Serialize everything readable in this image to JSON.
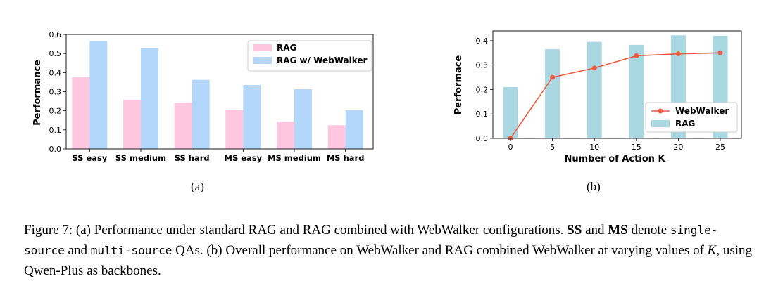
{
  "chart_data": [
    {
      "type": "bar",
      "title": "",
      "xlabel": "",
      "ylabel": "Performance",
      "ylim": [
        0,
        0.6
      ],
      "yticks": [
        "0.0",
        "0.1",
        "0.2",
        "0.3",
        "0.4",
        "0.5",
        "0.6"
      ],
      "categories": [
        "SS easy",
        "SS medium",
        "SS hard",
        "MS easy",
        "MS medium",
        "MS hard"
      ],
      "series": [
        {
          "name": "RAG",
          "color": "#ffc6e0",
          "values": [
            0.375,
            0.258,
            0.242,
            0.203,
            0.143,
            0.124
          ]
        },
        {
          "name": "RAG w/ WebWalker",
          "color": "#b3d6fb",
          "values": [
            0.565,
            0.528,
            0.362,
            0.335,
            0.313,
            0.203
          ]
        }
      ],
      "legend": "top-right",
      "sublabel": "(a)"
    },
    {
      "type": "bar+line",
      "title": "",
      "xlabel": "Number of Action K",
      "ylabel": "Performace",
      "ylim": [
        0,
        0.44
      ],
      "yticks": [
        "0.0",
        "0.1",
        "0.2",
        "0.3",
        "0.4"
      ],
      "x": [
        0,
        5,
        10,
        15,
        20,
        25
      ],
      "series": [
        {
          "name": "WebWalker",
          "kind": "line",
          "color": "#ef5b42",
          "values": [
            0.0,
            0.25,
            0.288,
            0.338,
            0.346,
            0.35
          ]
        },
        {
          "name": "RAG",
          "kind": "bar",
          "color": "#aad8e2",
          "values": [
            0.21,
            0.365,
            0.395,
            0.383,
            0.422,
            0.42
          ]
        }
      ],
      "legend": "center-right",
      "sublabel": "(b)"
    }
  ],
  "caption": {
    "prefix": "Figure 7: (a) Performance under standard RAG and RAG combined with WebWalker configurations.",
    "ss": "SS",
    "and": "and",
    "ms": "MS",
    "denote": "denote",
    "single_source": "single-source",
    "and2": "and",
    "multi_source": "multi-source",
    "mid": "QAs.  (b) Overall performance on WebWalker and RAG combined WebWalker at varying values of",
    "k": "K",
    "suffix": ", using Qwen-Plus as backbones."
  }
}
